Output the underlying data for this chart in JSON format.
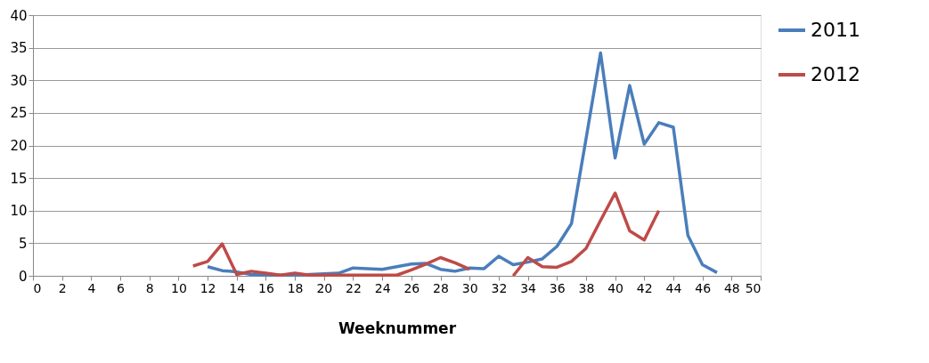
{
  "chart_data": {
    "type": "line",
    "xlabel": "Weeknummer",
    "xlim": [
      0,
      50
    ],
    "xticks": [
      0,
      2,
      4,
      6,
      8,
      10,
      12,
      14,
      16,
      18,
      20,
      22,
      24,
      26,
      28,
      30,
      32,
      34,
      36,
      38,
      40,
      42,
      44,
      46,
      48,
      50
    ],
    "ylim": [
      0,
      40
    ],
    "yticks": [
      0,
      5,
      10,
      15,
      20,
      25,
      30,
      35,
      40
    ],
    "grid": "y",
    "legend": "right",
    "marker": "none",
    "line_style": "solid",
    "series": [
      {
        "name": "2011",
        "color": "#4a7ebb",
        "x": [
          12,
          13,
          14,
          15,
          16,
          17,
          18,
          19,
          20,
          21,
          22,
          23,
          24,
          25,
          26,
          27,
          28,
          29,
          30,
          31,
          32,
          33,
          34,
          35,
          36,
          37,
          38,
          39,
          40,
          41,
          42,
          43,
          44,
          45,
          46,
          47
        ],
        "values": [
          1.4,
          0.8,
          0.6,
          0.2,
          0.1,
          0.1,
          0.1,
          0.2,
          0.3,
          0.4,
          1.2,
          1.1,
          1.0,
          1.4,
          1.8,
          1.9,
          1.0,
          0.7,
          1.2,
          1.1,
          3.0,
          1.7,
          2.1,
          2.6,
          4.5,
          8.0,
          21,
          34.2,
          18.1,
          29.2,
          20.2,
          23.5,
          22.8,
          6.2,
          1.7,
          0.5
        ]
      },
      {
        "name": "2012",
        "color": "#be4b48",
        "x": [
          11,
          12,
          13,
          14,
          15,
          16,
          17,
          18,
          19,
          20,
          21,
          22,
          23,
          24,
          25,
          26,
          27,
          28,
          29,
          30,
          31,
          32,
          33,
          34,
          35,
          36,
          37,
          38,
          39,
          40,
          41,
          42,
          43
        ],
        "values": [
          1.5,
          2.2,
          4.9,
          0.2,
          0.7,
          0.4,
          0.1,
          0.4,
          0.1,
          0.1,
          0.1,
          0.1,
          0.1,
          0.1,
          0.1,
          0.9,
          1.8,
          2.8,
          2.0,
          1.0,
          null,
          null,
          0.0,
          2.8,
          1.4,
          1.3,
          2.2,
          4.2,
          8.5,
          12.7,
          6.9,
          5.5,
          10.0
        ]
      }
    ]
  }
}
